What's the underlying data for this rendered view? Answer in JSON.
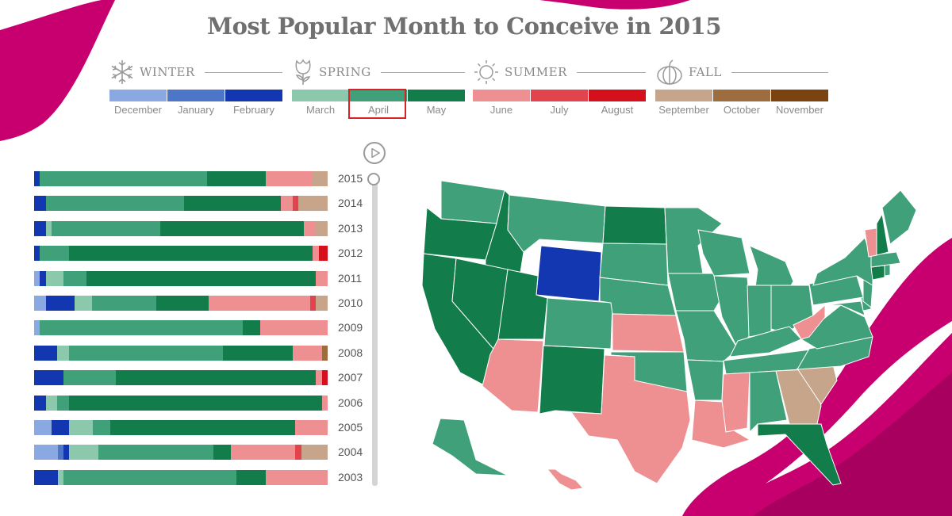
{
  "title": "Most Popular Month to Conceive in 2015",
  "colors": {
    "December": "#8aa9e3",
    "January": "#4d75c8",
    "February": "#1237b0",
    "March": "#8cc9ac",
    "April": "#40a07a",
    "May": "#127c4a",
    "June": "#ee8f92",
    "July": "#e2444e",
    "August": "#d50f1c",
    "September": "#c6a58a",
    "October": "#9d6d3f",
    "November": "#7a4310",
    "ribbon": "#c8006f"
  },
  "seasons": [
    {
      "name": "WINTER",
      "icon": "snowflake-icon",
      "months": [
        "December",
        "January",
        "February"
      ]
    },
    {
      "name": "SPRING",
      "icon": "flower-icon",
      "months": [
        "March",
        "April",
        "May"
      ]
    },
    {
      "name": "SUMMER",
      "icon": "sun-icon",
      "months": [
        "June",
        "July",
        "August"
      ]
    },
    {
      "name": "FALL",
      "icon": "pumpkin-icon",
      "months": [
        "September",
        "October",
        "November"
      ]
    }
  ],
  "selected_month": "April",
  "selected_year": "2015",
  "controls": {
    "play_icon": "play-icon",
    "slider": "year-slider"
  },
  "chart_data": {
    "type": "bar",
    "stacked": true,
    "orientation": "horizontal",
    "note_units": "share of states (%) whose most popular month is each month",
    "years": [
      "2015",
      "2014",
      "2013",
      "2012",
      "2011",
      "2010",
      "2009",
      "2008",
      "2007",
      "2006",
      "2005",
      "2004",
      "2003"
    ],
    "series": [
      {
        "name": "December",
        "values": [
          0,
          0,
          0,
          0,
          2,
          4,
          2,
          0,
          0,
          0,
          6,
          8,
          0
        ]
      },
      {
        "name": "January",
        "values": [
          0,
          0,
          0,
          0,
          0,
          0,
          0,
          0,
          0,
          0,
          0,
          2,
          0
        ]
      },
      {
        "name": "February",
        "values": [
          2,
          4,
          4,
          2,
          2,
          10,
          0,
          8,
          10,
          4,
          6,
          2,
          8
        ]
      },
      {
        "name": "March",
        "values": [
          0,
          0,
          2,
          0,
          6,
          6,
          0,
          4,
          0,
          4,
          8,
          10,
          2
        ]
      },
      {
        "name": "April",
        "values": [
          57,
          47,
          37,
          10,
          8,
          22,
          69,
          53,
          18,
          4,
          6,
          39,
          59
        ]
      },
      {
        "name": "May",
        "values": [
          20,
          33,
          49,
          83,
          79,
          18,
          6,
          24,
          69,
          87,
          63,
          6,
          10
        ]
      },
      {
        "name": "June",
        "values": [
          16,
          4,
          4,
          2,
          4,
          35,
          23,
          10,
          2,
          2,
          11,
          22,
          21
        ]
      },
      {
        "name": "July",
        "values": [
          0,
          2,
          0,
          0,
          0,
          2,
          0,
          0,
          0,
          0,
          0,
          2,
          0
        ]
      },
      {
        "name": "August",
        "values": [
          0,
          0,
          0,
          3,
          0,
          0,
          0,
          0,
          2,
          0,
          0,
          0,
          0
        ]
      },
      {
        "name": "September",
        "values": [
          5,
          10,
          4,
          0,
          0,
          4,
          0,
          0,
          0,
          0,
          0,
          9,
          0
        ]
      },
      {
        "name": "October",
        "values": [
          0,
          0,
          0,
          0,
          0,
          0,
          0,
          2,
          0,
          0,
          0,
          0,
          0
        ]
      },
      {
        "name": "November",
        "values": [
          0,
          0,
          0,
          0,
          0,
          0,
          0,
          0,
          0,
          0,
          0,
          0,
          0
        ]
      }
    ],
    "map_2015": {
      "Washington": "April",
      "Oregon": "May",
      "California": "May",
      "Idaho": "May",
      "Nevada": "May",
      "Montana": "April",
      "Wyoming": "February",
      "Utah": "May",
      "Colorado": "April",
      "Arizona": "June",
      "New Mexico": "May",
      "North Dakota": "May",
      "South Dakota": "April",
      "Nebraska": "April",
      "Kansas": "June",
      "Oklahoma": "April",
      "Texas": "June",
      "Minnesota": "April",
      "Iowa": "April",
      "Missouri": "April",
      "Arkansas": "April",
      "Louisiana": "June",
      "Wisconsin": "April",
      "Illinois": "April",
      "Michigan": "April",
      "Indiana": "April",
      "Ohio": "April",
      "Kentucky": "April",
      "Tennessee": "April",
      "Mississippi": "June",
      "Alabama": "April",
      "Georgia": "September",
      "Florida": "May",
      "South Carolina": "September",
      "North Carolina": "April",
      "Virginia": "April",
      "West Virginia": "June",
      "Maryland": "April",
      "Delaware": "April",
      "Pennsylvania": "April",
      "New Jersey": "April",
      "New York": "April",
      "Connecticut": "May",
      "Rhode Island": "April",
      "Massachusetts": "April",
      "Vermont": "June",
      "New Hampshire": "May",
      "Maine": "April",
      "Alaska": "April",
      "Hawaii": "June"
    }
  }
}
